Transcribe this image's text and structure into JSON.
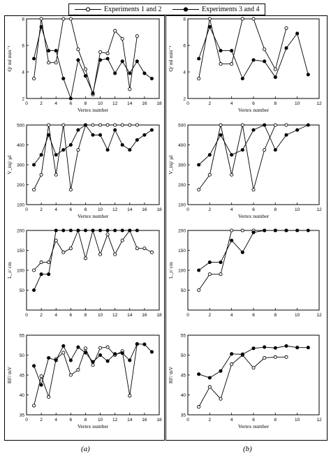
{
  "legend": {
    "series1": "Experiments 1 and 2",
    "series2": "Experiments 3 and 4"
  },
  "panel_labels": {
    "a": "(a)",
    "b": "(b)"
  },
  "chart_data": [
    {
      "type": "line",
      "panel": "a",
      "title": "",
      "xlabel": "Vertex number",
      "ylabel": "Q/ ml min⁻¹",
      "xlim": [
        0,
        18
      ],
      "ylim": [
        2,
        8
      ],
      "xticks": [
        0,
        2,
        4,
        6,
        8,
        10,
        12,
        14,
        16,
        18
      ],
      "yticks": [
        2,
        4,
        6,
        8
      ],
      "series": [
        {
          "name": "Experiments 1 and 2",
          "marker": "open",
          "x": [
            1,
            2,
            3,
            4,
            5,
            6,
            7,
            8,
            9,
            10,
            11,
            12,
            13,
            14,
            15
          ],
          "y": [
            3.5,
            8,
            4.7,
            4.7,
            8,
            8,
            5.7,
            4.2,
            2.3,
            5.5,
            5.4,
            7.1,
            6.5,
            2.7,
            6.7
          ]
        },
        {
          "name": "Experiments 3 and 4",
          "marker": "filled",
          "x": [
            1,
            2,
            3,
            4,
            5,
            6,
            7,
            8,
            9,
            10,
            11,
            12,
            13,
            14,
            15,
            16,
            17
          ],
          "y": [
            5,
            7.4,
            5.6,
            5.6,
            3.5,
            2,
            4.9,
            3.7,
            2.4,
            4.9,
            5,
            3.9,
            4.8,
            3.9,
            4.8,
            3.9,
            3.5
          ]
        }
      ]
    },
    {
      "type": "line",
      "panel": "a",
      "title": "",
      "xlabel": "Vertex number",
      "ylabel": "V_inj/ µl",
      "xlim": [
        0,
        18
      ],
      "ylim": [
        100,
        500
      ],
      "xticks": [
        0,
        2,
        4,
        6,
        8,
        10,
        12,
        14,
        16,
        18
      ],
      "yticks": [
        100,
        200,
        300,
        400,
        500
      ],
      "series": [
        {
          "name": "Experiments 1 and 2",
          "marker": "open",
          "x": [
            1,
            2,
            3,
            4,
            5,
            6,
            7,
            8,
            9,
            10,
            11,
            12,
            13,
            14,
            15
          ],
          "y": [
            175,
            250,
            500,
            250,
            500,
            175,
            375,
            500,
            500,
            500,
            500,
            500,
            500,
            500,
            500
          ]
        },
        {
          "name": "Experiments 3 and 4",
          "marker": "filled",
          "x": [
            1,
            2,
            3,
            4,
            5,
            6,
            7,
            8,
            9,
            10,
            11,
            12,
            13,
            14,
            15,
            16,
            17
          ],
          "y": [
            300,
            350,
            450,
            350,
            375,
            400,
            475,
            500,
            450,
            450,
            375,
            475,
            400,
            375,
            425,
            450,
            475
          ]
        }
      ]
    },
    {
      "type": "line",
      "panel": "a",
      "title": "",
      "xlabel": "",
      "ylabel": "L_r/ cm",
      "xlim": [
        0,
        18
      ],
      "ylim": [
        0,
        200
      ],
      "xticks": [
        0,
        2,
        4,
        6,
        8,
        10,
        12,
        14,
        16,
        18
      ],
      "yticks": [
        50,
        100,
        150,
        200
      ],
      "series": [
        {
          "name": "Experiments 1 and 2",
          "marker": "open",
          "x": [
            1,
            2,
            3,
            4,
            5,
            6,
            7,
            8,
            9,
            10,
            11,
            12,
            13,
            14,
            15,
            16,
            17
          ],
          "y": [
            100,
            120,
            120,
            175,
            145,
            155,
            200,
            130,
            200,
            140,
            190,
            140,
            175,
            200,
            155,
            155,
            145
          ]
        },
        {
          "name": "Experiments 3 and 4",
          "marker": "filled",
          "x": [
            1,
            2,
            3,
            4,
            5,
            6,
            7,
            8,
            9,
            10,
            11,
            12,
            13,
            14,
            15
          ],
          "y": [
            50,
            90,
            90,
            200,
            200,
            200,
            200,
            200,
            200,
            200,
            200,
            200,
            200,
            200,
            200
          ]
        }
      ]
    },
    {
      "type": "line",
      "panel": "a",
      "title": "",
      "xlabel": "Vertex number",
      "ylabel": "RF/ mV",
      "xlim": [
        0,
        18
      ],
      "ylim": [
        35,
        55
      ],
      "xticks": [
        0,
        2,
        4,
        6,
        8,
        10,
        12,
        14,
        16,
        18
      ],
      "yticks": [
        35,
        40,
        45,
        50,
        55
      ],
      "series": [
        {
          "name": "Experiments 1 and 2",
          "marker": "open",
          "x": [
            1,
            2,
            3,
            4,
            5,
            6,
            7,
            8,
            9,
            10,
            11,
            12,
            13,
            14,
            15
          ],
          "y": [
            37.3,
            44.7,
            39.5,
            49,
            50.6,
            45,
            46.3,
            51.7,
            47.5,
            51.8,
            52,
            50,
            51,
            39.8,
            52.8
          ]
        },
        {
          "name": "Experiments 3 and 4",
          "marker": "filled",
          "x": [
            1,
            2,
            3,
            4,
            5,
            6,
            7,
            8,
            9,
            10,
            11,
            12,
            13,
            14,
            15,
            16,
            17
          ],
          "y": [
            47.3,
            42.5,
            49.3,
            48.7,
            52.3,
            48.7,
            52,
            50.6,
            48.3,
            50,
            48.5,
            50.3,
            50.5,
            48.7,
            52.8,
            52.7,
            50.8
          ]
        }
      ]
    },
    {
      "type": "line",
      "panel": "b",
      "title": "",
      "xlabel": "Vertex number",
      "ylabel": "Q/ ml min⁻¹",
      "xlim": [
        0,
        12
      ],
      "ylim": [
        2,
        8
      ],
      "xticks": [
        0,
        2,
        4,
        6,
        8,
        10,
        12
      ],
      "yticks": [
        2,
        4,
        6,
        8
      ],
      "series": [
        {
          "name": "Experiments 1 and 2",
          "marker": "open",
          "x": [
            1,
            2,
            3,
            4,
            5,
            6,
            7,
            8,
            9
          ],
          "y": [
            3.5,
            8,
            4.6,
            4.6,
            8,
            8,
            5.7,
            4.2,
            7.3
          ]
        },
        {
          "name": "Experiments 3 and 4",
          "marker": "filled",
          "x": [
            1,
            2,
            3,
            4,
            5,
            6,
            7,
            8,
            9,
            10,
            11
          ],
          "y": [
            5,
            7.4,
            5.6,
            5.6,
            3.5,
            4.9,
            4.8,
            3.6,
            5.8,
            6.9,
            3.8
          ]
        }
      ]
    },
    {
      "type": "line",
      "panel": "b",
      "title": "",
      "xlabel": "Vertex number",
      "ylabel": "V_inj/ µl",
      "xlim": [
        0,
        12
      ],
      "ylim": [
        100,
        500
      ],
      "xticks": [
        0,
        2,
        4,
        6,
        8,
        10,
        12
      ],
      "yticks": [
        100,
        200,
        300,
        400,
        500
      ],
      "series": [
        {
          "name": "Experiments 1 and 2",
          "marker": "open",
          "x": [
            1,
            2,
            3,
            4,
            5,
            6,
            7,
            8,
            9
          ],
          "y": [
            175,
            250,
            500,
            250,
            500,
            175,
            375,
            500,
            500
          ]
        },
        {
          "name": "Experiments 3 and 4",
          "marker": "filled",
          "x": [
            1,
            2,
            3,
            4,
            5,
            6,
            7,
            8,
            9,
            10,
            11
          ],
          "y": [
            300,
            350,
            450,
            350,
            375,
            475,
            500,
            375,
            450,
            475,
            500
          ]
        }
      ]
    },
    {
      "type": "line",
      "panel": "b",
      "title": "",
      "xlabel": "",
      "ylabel": "L_r/ cm",
      "xlim": [
        0,
        12
      ],
      "ylim": [
        0,
        200
      ],
      "xticks": [
        0,
        2,
        4,
        6,
        8,
        10,
        12
      ],
      "yticks": [
        50,
        100,
        150,
        200
      ],
      "series": [
        {
          "name": "Experiments 1 and 2",
          "marker": "open",
          "x": [
            1,
            2,
            3,
            4,
            5,
            6,
            7,
            8,
            9
          ],
          "y": [
            50,
            90,
            90,
            200,
            200,
            200,
            200,
            200,
            200
          ]
        },
        {
          "name": "Experiments 3 and 4",
          "marker": "filled",
          "x": [
            1,
            2,
            3,
            4,
            5,
            6,
            7,
            8,
            9,
            10,
            11
          ],
          "y": [
            100,
            120,
            120,
            175,
            145,
            195,
            200,
            200,
            200,
            200,
            200
          ]
        }
      ]
    },
    {
      "type": "line",
      "panel": "b",
      "title": "",
      "xlabel": "Vertex number",
      "ylabel": "RF/ mV",
      "xlim": [
        0,
        12
      ],
      "ylim": [
        35,
        55
      ],
      "xticks": [
        0,
        2,
        4,
        6,
        8,
        10,
        12
      ],
      "yticks": [
        35,
        40,
        45,
        50,
        55
      ],
      "series": [
        {
          "name": "Experiments 1 and 2",
          "marker": "open",
          "x": [
            1,
            2,
            3,
            4,
            5,
            6,
            7,
            8,
            9
          ],
          "y": [
            37,
            42,
            39,
            47.7,
            50,
            46.8,
            49.3,
            49.5,
            49.5
          ]
        },
        {
          "name": "Experiments 3 and 4",
          "marker": "filled",
          "x": [
            1,
            2,
            3,
            4,
            5,
            6,
            7,
            8,
            9,
            10,
            11
          ],
          "y": [
            45.2,
            44.3,
            46,
            50.3,
            50.2,
            51.7,
            52,
            51.8,
            52.3,
            51.9,
            51.9
          ]
        }
      ]
    }
  ]
}
